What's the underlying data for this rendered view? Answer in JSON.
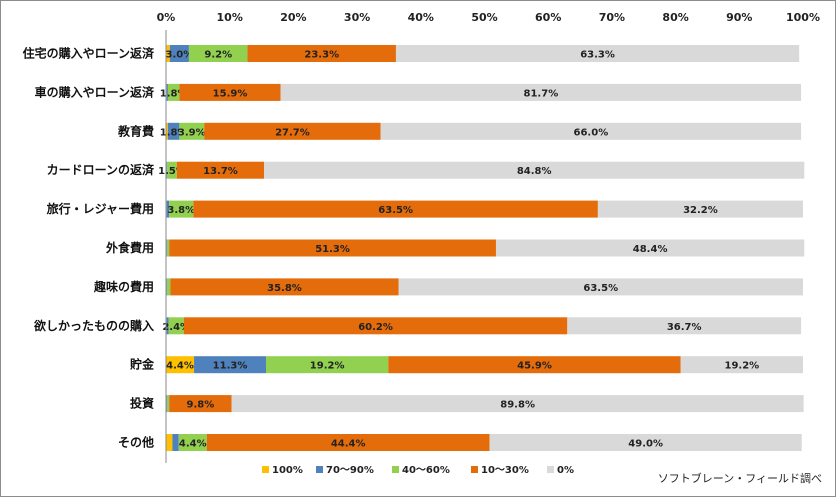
{
  "chart_data": {
    "type": "bar",
    "orientation": "horizontal",
    "stacked": true,
    "xlim": [
      0,
      100
    ],
    "x_ticks": [
      "0%",
      "10%",
      "20%",
      "30%",
      "40%",
      "50%",
      "60%",
      "70%",
      "80%",
      "90%",
      "100%"
    ],
    "grid": false,
    "legend_position": "bottom",
    "categories": [
      "住宅の購入やローン返済",
      "車の購入やローン返済",
      "教育費",
      "カードローンの返済",
      "旅行・レジャー費用",
      "外食費用",
      "趣味の費用",
      "欲しかったものの購入",
      "貯金",
      "投資",
      "その他"
    ],
    "series": [
      {
        "name": "100%",
        "color": "#ffc000",
        "values": [
          0.6,
          0.1,
          0.3,
          0.1,
          0.1,
          0.1,
          0.1,
          0.1,
          4.4,
          0.1,
          1.0
        ],
        "labels": [
          "",
          "",
          "",
          "",
          "",
          "",
          "",
          "",
          "4.4%",
          "",
          ""
        ]
      },
      {
        "name": "70～90%",
        "color": "#4f81bd",
        "values": [
          3.0,
          0.2,
          1.8,
          0.1,
          0.4,
          0.1,
          0.1,
          0.3,
          11.3,
          0.1,
          1.0
        ],
        "labels": [
          "3.0%",
          "",
          "1.8%",
          "",
          "",
          "",
          "",
          "",
          "11.3%",
          "",
          ""
        ]
      },
      {
        "name": "40～60%",
        "color": "#92d050",
        "values": [
          9.2,
          1.8,
          3.9,
          1.5,
          3.8,
          0.3,
          0.5,
          2.4,
          19.2,
          0.3,
          4.4
        ],
        "labels": [
          "9.2%",
          "1.8%",
          "3.9%",
          "1.5%",
          "3.8%",
          "",
          "",
          "2.4%",
          "19.2%",
          "",
          "4.4%"
        ]
      },
      {
        "name": "10～30%",
        "color": "#e46c0a",
        "values": [
          23.3,
          15.9,
          27.7,
          13.7,
          63.5,
          51.3,
          35.8,
          60.2,
          45.9,
          9.8,
          44.4
        ],
        "labels": [
          "23.3%",
          "15.9%",
          "27.7%",
          "13.7%",
          "63.5%",
          "51.3%",
          "35.8%",
          "60.2%",
          "45.9%",
          "9.8%",
          "44.4%"
        ]
      },
      {
        "name": "0%",
        "color": "#d9d9d9",
        "values": [
          63.3,
          81.7,
          66.0,
          84.8,
          32.2,
          48.4,
          63.5,
          36.7,
          19.2,
          89.8,
          49.0
        ],
        "labels": [
          "63.3%",
          "81.7%",
          "66.0%",
          "84.8%",
          "32.2%",
          "48.4%",
          "63.5%",
          "36.7%",
          "19.2%",
          "89.8%",
          "49.0%"
        ]
      }
    ]
  },
  "source_note": "ソフトブレーン・フィールド調べ"
}
